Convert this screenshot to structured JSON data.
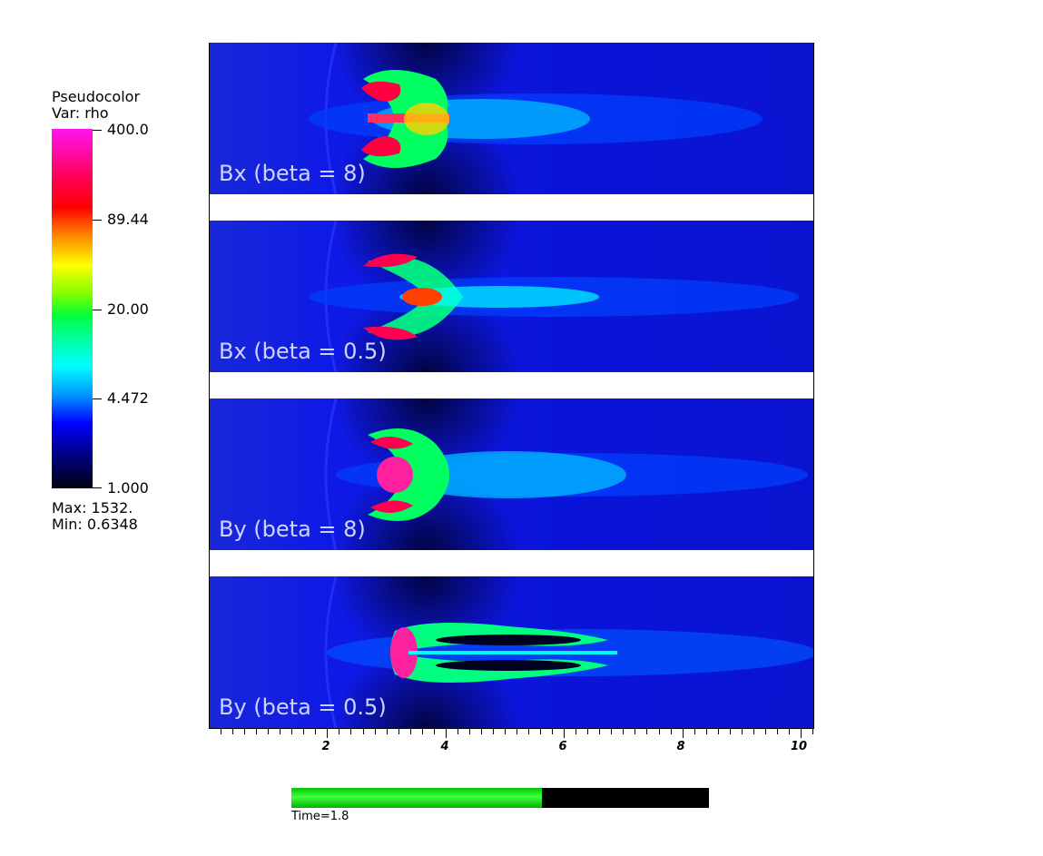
{
  "legend": {
    "title_line1": "Pseudocolor",
    "title_line2": "Var: rho",
    "ticks": [
      "400.0",
      "89.44",
      "20.00",
      "4.472",
      "1.000"
    ],
    "max_label": "Max:  1532.",
    "min_label": "Min:  0.6348"
  },
  "panels": [
    {
      "label": "Bx (beta = 8)"
    },
    {
      "label": "Bx (beta = 0.5)"
    },
    {
      "label": "By (beta = 8)"
    },
    {
      "label": "By (beta = 0.5)"
    }
  ],
  "axis": {
    "tick_labels": [
      "2",
      "4",
      "6",
      "8",
      "10"
    ]
  },
  "progress": {
    "fraction": 0.6,
    "fill_color": "#00dd00",
    "label": "Time=1.8"
  }
}
